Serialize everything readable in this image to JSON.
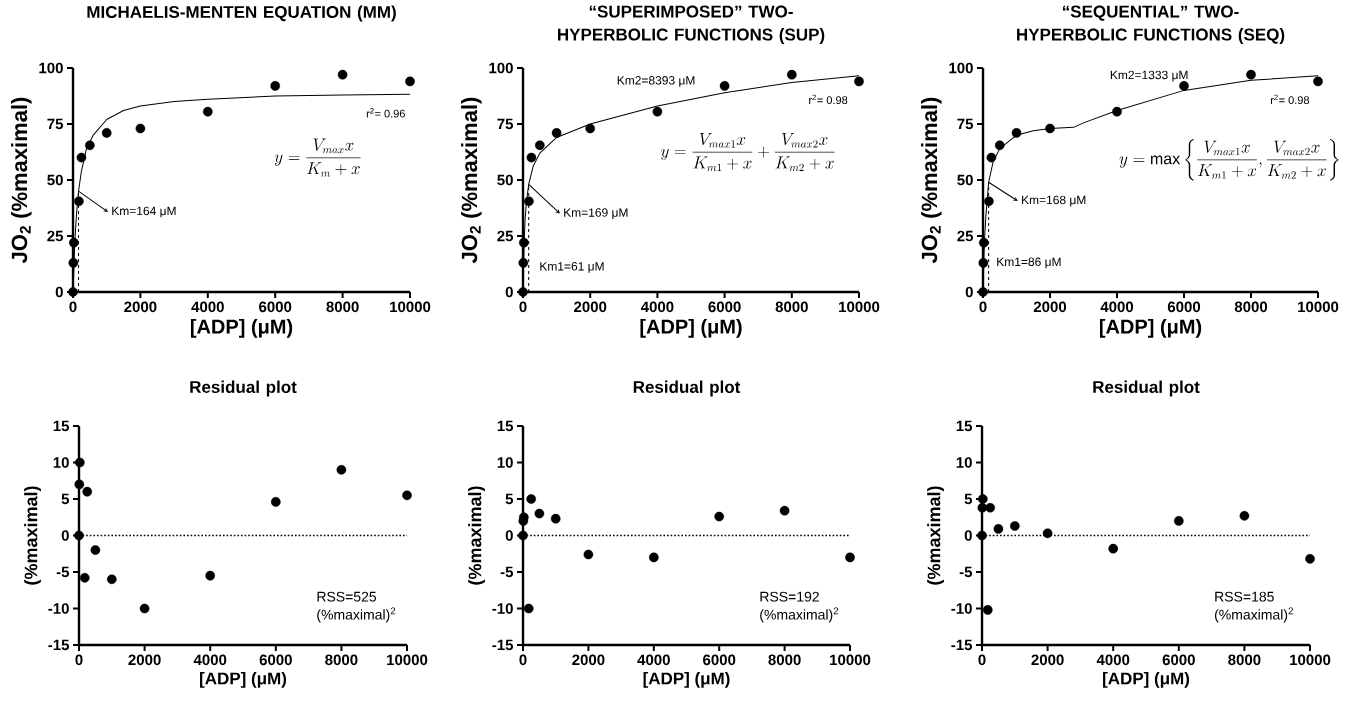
{
  "chart_data": [
    {
      "type": "scatter",
      "title": "MICHAELIS-MENTEN EQUATION (MM)",
      "xlabel": "[ADP] (μM)",
      "ylabel": "JO$_{2}$ (%maximal)",
      "xlim": [
        0,
        10000
      ],
      "xticks": [
        0,
        2000,
        4000,
        6000,
        8000,
        10000
      ],
      "ylim": [
        0,
        100
      ],
      "yticks": [
        0,
        25,
        50,
        75,
        100
      ],
      "series": [
        {
          "type": "scatter",
          "marker": "circle",
          "color": "#000000",
          "x": [
            0,
            10,
            25,
            175,
            250,
            500,
            1000,
            2000,
            4000,
            6000,
            8000,
            10000
          ],
          "values": [
            0,
            13,
            22,
            40.5,
            60,
            65.5,
            71,
            73,
            80.5,
            92,
            97,
            94
          ]
        },
        {
          "type": "line",
          "marker": "none",
          "line_style": "solid",
          "color": "#000000",
          "x": [
            0,
            50,
            100,
            164,
            250,
            400,
            600,
            1000,
            1500,
            2000,
            3000,
            4000,
            6000,
            8000,
            10000
          ],
          "values": [
            0,
            21,
            34,
            45,
            54,
            64,
            70,
            77,
            81,
            83,
            85,
            86,
            87.5,
            88,
            88.3
          ]
        },
        {
          "type": "line",
          "marker": "none",
          "line_style": "dashed",
          "color": "#000000",
          "x": [
            164,
            164
          ],
          "values": [
            0,
            45
          ]
        }
      ],
      "annotations": [
        {
          "text": "Km=164 μM",
          "x": 164,
          "y": 45
        },
        "r$^{2}$= 0.96",
        "y = \\frac{V_{max}x}{K_m + x}"
      ]
    },
    {
      "type": "scatter",
      "title": "“SUPERIMPOSED” TWO-HYPERBOLIC FUNCTIONS (SUP)",
      "xlabel": "[ADP] (μM)",
      "ylabel": "JO$_{2}$ (%maximal)",
      "xlim": [
        0,
        10000
      ],
      "xticks": [
        0,
        2000,
        4000,
        6000,
        8000,
        10000
      ],
      "ylim": [
        0,
        100
      ],
      "yticks": [
        0,
        25,
        50,
        75,
        100
      ],
      "series": [
        {
          "type": "scatter",
          "marker": "circle",
          "color": "#000000",
          "x": [
            0,
            10,
            25,
            175,
            250,
            500,
            1000,
            2000,
            4000,
            6000,
            8000,
            10000
          ],
          "values": [
            0,
            13,
            22,
            40.5,
            60,
            65.5,
            71,
            73,
            80.5,
            92,
            97,
            94
          ]
        },
        {
          "type": "line",
          "marker": "none",
          "line_style": "solid",
          "color": "#000000",
          "x": [
            0,
            30,
            61,
            100,
            169,
            300,
            500,
            1000,
            2000,
            3000,
            4000,
            6000,
            8000,
            10000
          ],
          "values": [
            0,
            20,
            32,
            40,
            48,
            56,
            62,
            69,
            75,
            79,
            83,
            89,
            93.5,
            96.5
          ]
        },
        {
          "type": "line",
          "marker": "none",
          "line_style": "dashed",
          "color": "#000000",
          "x": [
            169,
            169
          ],
          "values": [
            0,
            48
          ]
        }
      ],
      "annotations": [
        "Km2=8393 μM",
        {
          "text": "Km=169 μM",
          "x": 169,
          "y": 48
        },
        "Km1=61 μM",
        "r$^{2}$= 0.98",
        "y = \\frac{V_{max1}x}{K_{m1}+x}+\\frac{V_{max2}x}{K_{m2}+x}"
      ]
    },
    {
      "type": "scatter",
      "title": "“SEQUENTIAL” TWO-HYPERBOLIC FUNCTIONS (SEQ)",
      "xlabel": "[ADP] (μM)",
      "ylabel": "JO$_{2}$ (%maximal)",
      "xlim": [
        0,
        10000
      ],
      "xticks": [
        0,
        2000,
        4000,
        6000,
        8000,
        10000
      ],
      "ylim": [
        0,
        100
      ],
      "yticks": [
        0,
        25,
        50,
        75,
        100
      ],
      "series": [
        {
          "type": "scatter",
          "marker": "circle",
          "color": "#000000",
          "x": [
            0,
            10,
            25,
            175,
            250,
            500,
            1000,
            2000,
            4000,
            6000,
            8000,
            10000
          ],
          "values": [
            0,
            13,
            22,
            40.5,
            60,
            65.5,
            71,
            73,
            80.5,
            92,
            97,
            94
          ]
        },
        {
          "type": "line",
          "marker": "none",
          "line_style": "solid",
          "color": "#000000",
          "x": [
            0,
            40,
            86,
            168,
            300,
            500,
            1000,
            1500,
            2000,
            2700,
            3000,
            4000,
            6000,
            8000,
            10000
          ],
          "values": [
            0,
            22,
            34,
            49,
            58,
            64,
            70,
            72,
            73,
            73.5,
            75.5,
            81,
            90,
            94.5,
            96.5
          ]
        },
        {
          "type": "line",
          "marker": "none",
          "line_style": "dashed",
          "color": "#000000",
          "x": [
            168,
            168
          ],
          "values": [
            0,
            49
          ]
        }
      ],
      "annotations": [
        "Km2=1333 μM",
        {
          "text": "Km=168 μM",
          "x": 168,
          "y": 49
        },
        "Km1=86 μM",
        "r$^{2}$= 0.98",
        "y = \\max\\left\\{\\frac{V_{max1}x}{K_{m1} + x},\\frac{V_{max2}x}{K_{m2} + x}\\right\\}"
      ]
    },
    {
      "type": "scatter",
      "title": "Residual plot",
      "xlabel": "[ADP] (μM)",
      "ylabel": "(%maximal)",
      "xlim": [
        0,
        10000
      ],
      "xticks": [
        0,
        2000,
        4000,
        6000,
        8000,
        10000
      ],
      "ylim": [
        -15,
        15
      ],
      "yticks": [
        -15,
        -10,
        -5,
        0,
        5,
        10,
        15
      ],
      "marker": "circle",
      "x": [
        0,
        10,
        25,
        175,
        250,
        500,
        1000,
        2000,
        4000,
        6000,
        8000,
        10000
      ],
      "values": [
        0,
        7,
        10,
        -5.8,
        6,
        -2,
        -6,
        -10,
        -5.5,
        4.6,
        9,
        5.5
      ],
      "color": "#000000",
      "ref_lines": [
        {
          "axis": "y",
          "value": 0,
          "line_style": "dotted"
        }
      ],
      "annotations": [
        "RSS=525 (%maximal)$^{2}$"
      ]
    },
    {
      "type": "scatter",
      "title": "Residual plot",
      "xlabel": "[ADP] (μM)",
      "ylabel": "(%maximal)",
      "xlim": [
        0,
        10000
      ],
      "xticks": [
        0,
        2000,
        4000,
        6000,
        8000,
        10000
      ],
      "ylim": [
        -15,
        15
      ],
      "yticks": [
        -15,
        -10,
        -5,
        0,
        5,
        10,
        15
      ],
      "marker": "circle",
      "x": [
        0,
        10,
        25,
        175,
        250,
        500,
        1000,
        2000,
        4000,
        6000,
        8000,
        10000
      ],
      "values": [
        0,
        2,
        2.5,
        -10,
        5,
        3,
        2.3,
        -2.6,
        -3,
        2.6,
        3.4,
        -3
      ],
      "color": "#000000",
      "ref_lines": [
        {
          "axis": "y",
          "value": 0,
          "line_style": "dotted"
        }
      ],
      "annotations": [
        "RSS=192 (%maximal)$^{2}$"
      ]
    },
    {
      "type": "scatter",
      "title": "Residual plot",
      "xlabel": "[ADP] (μM)",
      "ylabel": "(%maximal)",
      "xlim": [
        0,
        10000
      ],
      "xticks": [
        0,
        2000,
        4000,
        6000,
        8000,
        10000
      ],
      "ylim": [
        -15,
        15
      ],
      "yticks": [
        -15,
        -10,
        -5,
        0,
        5,
        10,
        15
      ],
      "marker": "circle",
      "x": [
        0,
        10,
        25,
        175,
        250,
        500,
        1000,
        2000,
        4000,
        6000,
        8000,
        10000
      ],
      "values": [
        0,
        3.8,
        5,
        -10.2,
        3.8,
        0.9,
        1.3,
        0.3,
        -1.8,
        2,
        2.7,
        -3.2
      ],
      "color": "#000000",
      "ref_lines": [
        {
          "axis": "y",
          "value": 0,
          "line_style": "dotted"
        }
      ],
      "annotations": [
        "RSS=185 (%maximal)$^{2}$"
      ]
    }
  ]
}
